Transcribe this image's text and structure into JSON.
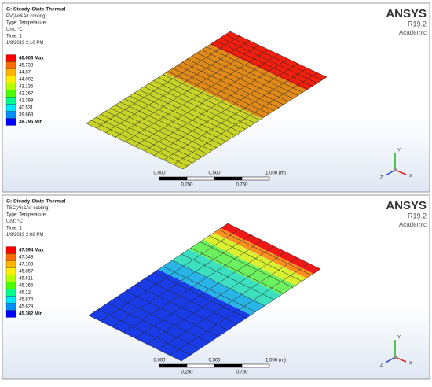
{
  "panels": [
    {
      "header": [
        "G: Steady-State Thermal",
        "PV(Air&Air cooling)",
        "Type: Temperature",
        "Unit: °C",
        "Time: 1",
        "1/9/2019 2:10 PM"
      ],
      "legend": [
        "46.606 Max",
        "45.738",
        "44.87",
        "44.002",
        "43.135",
        "42.267",
        "41.399",
        "40.531",
        "39.663",
        "38.795 Min"
      ],
      "logo": [
        "ANSYS",
        "R19.2",
        "Academic"
      ],
      "scale_top": [
        "0.000",
        "0.500",
        "1.000 (m)"
      ],
      "scale_bottom": [
        "0.250",
        "0.750"
      ],
      "axes": [
        "X",
        "Y",
        "Z"
      ]
    },
    {
      "header": [
        "G: Steady-State Thermal",
        "TSC(Air&Air cooling)",
        "Type: Temperature",
        "Unit: °C",
        "Time: 1",
        "1/9/2019 2:08 PM"
      ],
      "legend": [
        "47.594 Max",
        "47.348",
        "47.103",
        "46.857",
        "46.611",
        "46.365",
        "46.12",
        "45.874",
        "45.628",
        "45.382 Min"
      ],
      "logo": [
        "ANSYS",
        "R19.2",
        "Academic"
      ],
      "scale_top": [
        "0.000",
        "0.500",
        "1.000 (m)"
      ],
      "scale_bottom": [
        "0.250",
        "0.750"
      ],
      "axes": [
        "X",
        "Y",
        "Z"
      ]
    }
  ]
}
